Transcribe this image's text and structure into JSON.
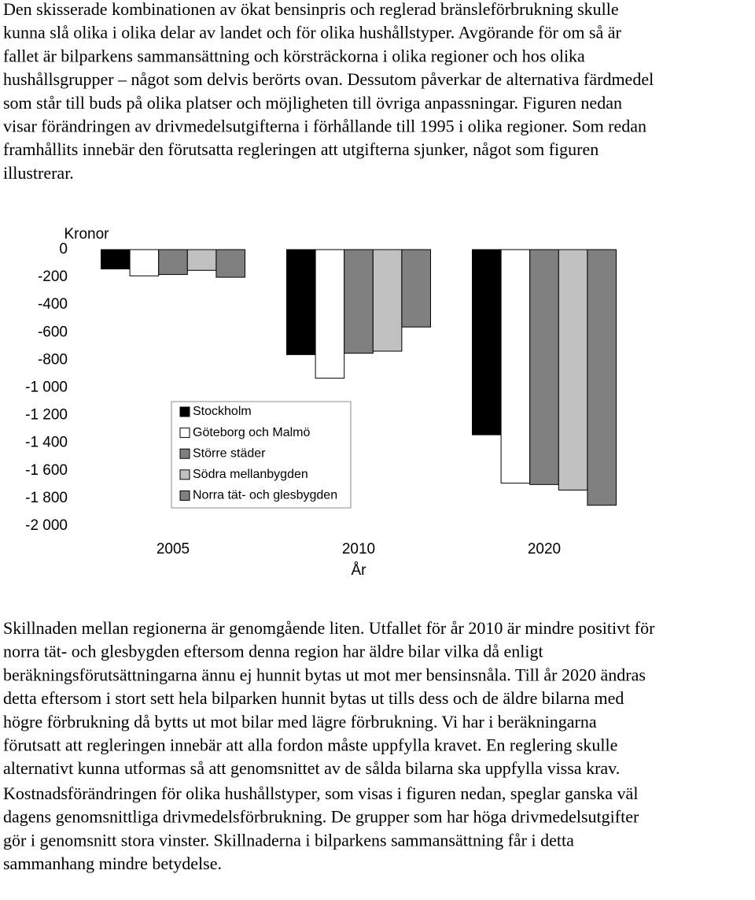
{
  "paragraphs": [
    [
      "Den skisserade kombinationen av ökat bensinpris och reglerad bränsleförbrukning skulle",
      "kunna slå olika i olika delar av landet och för olika hushållstyper. Avgörande för om så är",
      "fallet är bilparkens sammansättning och körsträckorna i olika regioner och hos olika",
      "hushållsgrupper – något som delvis berörts ovan. Dessutom påverkar de alternativa färdmedel",
      "som står till buds på olika platser och möjligheten till övriga anpassningar. Figuren nedan",
      "visar förändringen av drivmedelsutgifterna i förhållande till 1995 i olika regioner. Som redan",
      "framhållits innebär den förutsatta regleringen att utgifterna sjunker, något som figuren",
      "illustrerar."
    ],
    [
      "Skillnaden mellan regionerna är genomgående liten. Utfallet för år 2010 är mindre positivt för",
      "norra tät- och glesbygden eftersom denna region har äldre bilar vilka då enligt",
      "beräkningsförutsättningarna ännu ej hunnit bytas ut mot mer bensinsnåla. Till år 2020 ändras",
      "detta eftersom i stort sett hela bilparken hunnit bytas ut tills dess och de äldre bilarna med",
      "högre förbrukning då bytts ut mot bilar med lägre förbrukning. Vi har i beräkningarna",
      "förutsatt att regleringen innebär att alla fordon måste uppfylla kravet. En reglering skulle",
      "alternativt kunna utformas så att genomsnittet av de sålda bilarna ska uppfylla vissa krav."
    ],
    [
      "Kostnadsförändringen för olika hushållstyper, som visas i figuren nedan, speglar ganska väl",
      "dagens genomsnittliga drivmedelsförbrukning. De grupper som har höga drivmedelsutgifter",
      "gör i genomsnitt stora vinster. Skillnaderna i bilparkens sammansättning får i detta",
      "sammanhang mindre betydelse."
    ]
  ],
  "chart_data": {
    "type": "bar",
    "y_label": "Kronor",
    "x_label": "År",
    "categories": [
      "2005",
      "2010",
      "2020"
    ],
    "series": [
      {
        "name": "Stockholm",
        "color": "#000000",
        "values": [
          -140,
          -760,
          -1340
        ]
      },
      {
        "name": "Göteborg och Malmö",
        "color": "#ffffff",
        "values": [
          -190,
          -930,
          -1690
        ]
      },
      {
        "name": "Större städer",
        "color": "#808080",
        "values": [
          -180,
          -750,
          -1700
        ]
      },
      {
        "name": "Södra mellanbygden",
        "color": "#c0c0c0",
        "values": [
          -150,
          -735,
          -1740
        ]
      },
      {
        "name": "Norra tät- och glesbygden",
        "color": "#808080",
        "values": [
          -200,
          -560,
          -1850
        ]
      }
    ],
    "ylim": [
      -2000,
      0
    ],
    "yticks": [
      0,
      -200,
      -400,
      -600,
      -800,
      {
        "value": -1000,
        "label": "-1 000"
      },
      {
        "value": -1200,
        "label": "-1 200"
      },
      {
        "value": -1400,
        "label": "-1 400"
      },
      {
        "value": -1600,
        "label": "-1 600"
      },
      {
        "value": -1800,
        "label": "-1 800"
      },
      {
        "value": -2000,
        "label": "-2 000"
      }
    ],
    "grid": false
  }
}
